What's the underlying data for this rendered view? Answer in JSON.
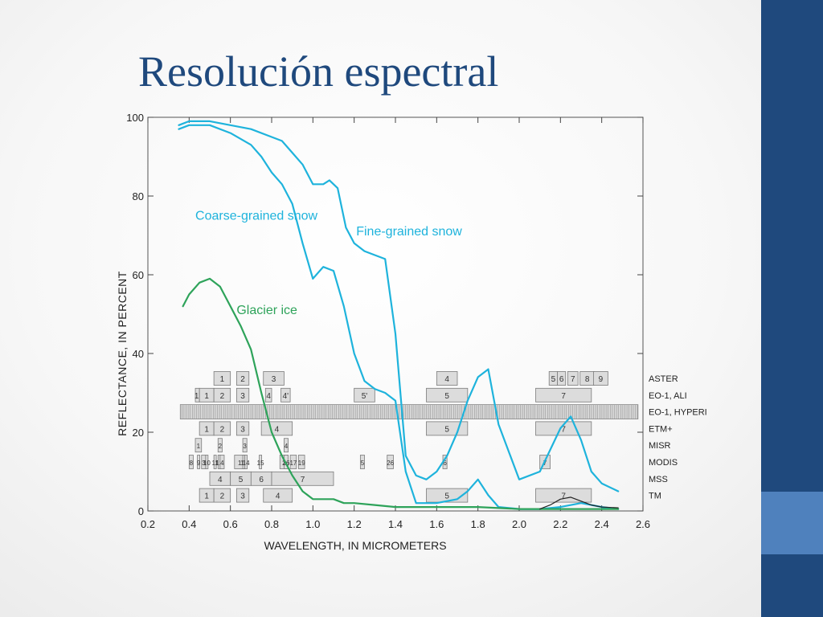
{
  "slide": {
    "title": "Resolución espectral",
    "colors": {
      "background": "#f7f7f7",
      "side_panel": "#1f497d",
      "side_accent": "#4f81bd",
      "title": "#1f497d"
    }
  },
  "chart_data": {
    "type": "line",
    "xlabel": "WAVELENGTH, IN MICROMETERS",
    "ylabel": "REFLECTANCE, IN PERCENT",
    "xlim": [
      0.2,
      2.6
    ],
    "ylim": [
      0,
      100
    ],
    "xticks": [
      0.2,
      0.4,
      0.6,
      0.8,
      1.0,
      1.2,
      1.4,
      1.6,
      1.8,
      2.0,
      2.2,
      2.4,
      2.6
    ],
    "xtick_labels": [
      "0.2",
      "0.4",
      "0.6",
      "0.8",
      "1.0",
      "1.2",
      "1.4",
      "1.6",
      "1.8",
      "2.0",
      "2.2",
      "2.4",
      "2.6"
    ],
    "yticks": [
      0,
      20,
      40,
      60,
      80,
      100
    ],
    "ytick_labels": [
      "0",
      "20",
      "40",
      "60",
      "80",
      "100"
    ],
    "grid": false,
    "series": [
      {
        "name": "Fine-grained snow",
        "color": "#1eb3dc",
        "x": [
          0.35,
          0.4,
          0.5,
          0.6,
          0.7,
          0.8,
          0.85,
          0.9,
          0.95,
          1.0,
          1.05,
          1.08,
          1.12,
          1.16,
          1.2,
          1.25,
          1.3,
          1.35,
          1.4,
          1.45,
          1.5,
          1.55,
          1.6,
          1.65,
          1.7,
          1.75,
          1.8,
          1.85,
          1.9,
          2.0,
          2.1,
          2.2,
          2.25,
          2.3,
          2.35,
          2.4,
          2.48
        ],
        "y": [
          98,
          99,
          99,
          98,
          97,
          95,
          94,
          91,
          88,
          83,
          83,
          84,
          82,
          72,
          68,
          66,
          65,
          64,
          45,
          14,
          9,
          8,
          10,
          14,
          20,
          28,
          34,
          36,
          22,
          8,
          10,
          21,
          24,
          18,
          10,
          7,
          5
        ]
      },
      {
        "name": "Coarse-grained snow",
        "color": "#1eb3dc",
        "x": [
          0.35,
          0.4,
          0.5,
          0.6,
          0.7,
          0.75,
          0.8,
          0.85,
          0.9,
          0.95,
          1.0,
          1.05,
          1.1,
          1.15,
          1.2,
          1.25,
          1.3,
          1.35,
          1.4,
          1.45,
          1.5,
          1.6,
          1.7,
          1.75,
          1.8,
          1.85,
          1.9,
          2.0,
          2.1,
          2.2,
          2.3,
          2.4,
          2.48
        ],
        "y": [
          97,
          98,
          98,
          96,
          93,
          90,
          86,
          83,
          78,
          68,
          59,
          62,
          61,
          52,
          40,
          33,
          31,
          30,
          28,
          10,
          2,
          2,
          3,
          5,
          8,
          4,
          1,
          0.5,
          0.5,
          1,
          2,
          1,
          0.5
        ]
      },
      {
        "name": "Glacier ice",
        "color": "#2ea35a",
        "x": [
          0.37,
          0.4,
          0.45,
          0.5,
          0.55,
          0.6,
          0.65,
          0.7,
          0.75,
          0.8,
          0.85,
          0.9,
          0.95,
          1.0,
          1.05,
          1.1,
          1.15,
          1.2,
          1.3,
          1.4,
          1.6,
          1.8,
          2.0,
          2.2,
          2.48
        ],
        "y": [
          52,
          55,
          58,
          59,
          57,
          52,
          47,
          41,
          30,
          20,
          14,
          9,
          5,
          3,
          3,
          3,
          2,
          2,
          1.5,
          1,
          1,
          1,
          0.5,
          0.5,
          0.5
        ]
      }
    ],
    "aux_series": [
      {
        "color": "#222222",
        "x": [
          2.1,
          2.15,
          2.2,
          2.25,
          2.3,
          2.35,
          2.4,
          2.48
        ],
        "y": [
          0.5,
          1.5,
          3,
          3.5,
          2.5,
          1.5,
          1,
          0.8
        ]
      }
    ],
    "annotations": [
      {
        "text": "Coarse-grained snow",
        "x": 0.43,
        "y": 74,
        "color": "#1eb3dc"
      },
      {
        "text": "Fine-grained snow",
        "x": 1.21,
        "y": 70,
        "color": "#1eb3dc"
      },
      {
        "text": "Glacier ice",
        "x": 0.63,
        "y": 50,
        "color": "#2ea35a"
      }
    ],
    "sensors": [
      {
        "name": "ASTER",
        "bands": [
          [
            "1",
            0.52,
            0.6
          ],
          [
            "2",
            0.63,
            0.69
          ],
          [
            "3",
            0.76,
            0.86
          ],
          [
            "4",
            1.6,
            1.7
          ],
          [
            "5",
            2.145,
            2.185
          ],
          [
            "6",
            2.185,
            2.225
          ],
          [
            "7",
            2.235,
            2.285
          ],
          [
            "8",
            2.295,
            2.365
          ],
          [
            "9",
            2.36,
            2.43
          ]
        ]
      },
      {
        "name": "EO-1, ALI",
        "bands": [
          [
            "1'",
            0.43,
            0.45
          ],
          [
            "1",
            0.45,
            0.52
          ],
          [
            "2",
            0.52,
            0.6
          ],
          [
            "3",
            0.63,
            0.69
          ],
          [
            "4",
            0.77,
            0.8
          ],
          [
            "4'",
            0.845,
            0.89
          ],
          [
            "5'",
            1.2,
            1.3
          ],
          [
            "5",
            1.55,
            1.75
          ],
          [
            "7",
            2.08,
            2.35
          ]
        ]
      },
      {
        "name": "EO-1, HYPERION",
        "bands": []
      },
      {
        "name": "ETM+",
        "bands": [
          [
            "1",
            0.45,
            0.52
          ],
          [
            "2",
            0.52,
            0.6
          ],
          [
            "3",
            0.63,
            0.69
          ],
          [
            "4",
            0.75,
            0.9
          ],
          [
            "5",
            1.55,
            1.75
          ],
          [
            "7",
            2.08,
            2.35
          ]
        ]
      },
      {
        "name": "MISR",
        "bands": [
          [
            "1",
            0.43,
            0.46
          ],
          [
            "2",
            0.54,
            0.56
          ],
          [
            "3",
            0.66,
            0.68
          ],
          [
            "4",
            0.86,
            0.88
          ]
        ]
      },
      {
        "name": "MODIS",
        "bands": [
          [
            "8",
            0.4,
            0.42
          ],
          [
            "9",
            0.44,
            0.45
          ],
          [
            "3",
            0.46,
            0.48
          ],
          [
            "10",
            0.48,
            0.49
          ],
          [
            "11",
            0.52,
            0.53
          ],
          [
            "12",
            0.54,
            0.55
          ],
          [
            "4",
            0.55,
            0.57
          ],
          [
            "1",
            0.62,
            0.67
          ],
          [
            "13",
            0.66,
            0.67
          ],
          [
            "14",
            0.67,
            0.68
          ],
          [
            "15",
            0.74,
            0.75
          ],
          [
            "2",
            0.84,
            0.88
          ],
          [
            "16",
            0.86,
            0.88
          ],
          [
            "17",
            0.89,
            0.92
          ],
          [
            "19",
            0.93,
            0.96
          ],
          [
            "5",
            1.23,
            1.25
          ],
          [
            "26",
            1.36,
            1.39
          ],
          [
            "6",
            1.63,
            1.65
          ],
          [
            "7",
            2.1,
            2.15
          ]
        ]
      },
      {
        "name": "MSS",
        "bands": [
          [
            "4",
            0.5,
            0.6
          ],
          [
            "5",
            0.6,
            0.7
          ],
          [
            "6",
            0.7,
            0.8
          ],
          [
            "7",
            0.8,
            1.1
          ]
        ]
      },
      {
        "name": "TM",
        "bands": [
          [
            "1",
            0.45,
            0.52
          ],
          [
            "2",
            0.52,
            0.6
          ],
          [
            "3",
            0.63,
            0.69
          ],
          [
            "4",
            0.76,
            0.9
          ],
          [
            "5",
            1.55,
            1.75
          ],
          [
            "7",
            2.08,
            2.35
          ]
        ]
      }
    ],
    "hyperion_range": [
      0.357,
      2.576
    ]
  }
}
